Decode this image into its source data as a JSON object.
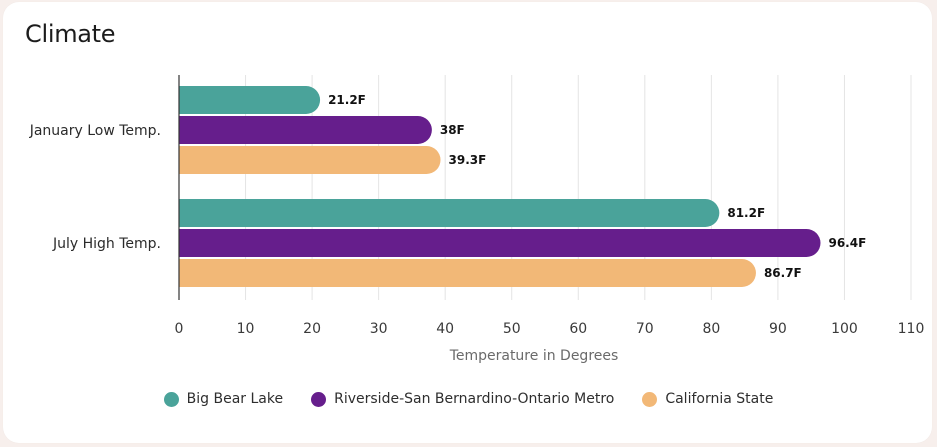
{
  "card": {
    "title": "Climate"
  },
  "chart_data": {
    "type": "bar",
    "orientation": "horizontal",
    "title": "",
    "xlabel": "Temperature in Degrees",
    "ylabel": "",
    "categories": [
      "January Low Temp.",
      "July High Temp."
    ],
    "series": [
      {
        "name": "Big Bear Lake",
        "values": [
          21.2,
          81.2
        ],
        "labels": [
          "21.2F",
          "81.2F"
        ],
        "color": "#4aa39a"
      },
      {
        "name": "Riverside-San Bernardino-Ontario Metro",
        "values": [
          38,
          96.4
        ],
        "labels": [
          "38F",
          "96.4F"
        ],
        "color": "#661e8c"
      },
      {
        "name": "California State",
        "values": [
          39.3,
          86.7
        ],
        "labels": [
          "39.3F",
          "86.7F"
        ],
        "color": "#f2b877"
      }
    ],
    "xlim": [
      0,
      110
    ],
    "xticks": [
      0,
      10,
      20,
      30,
      40,
      50,
      60,
      70,
      80,
      90,
      100,
      110
    ],
    "grid": "vertical",
    "legend": "bottom-center"
  }
}
